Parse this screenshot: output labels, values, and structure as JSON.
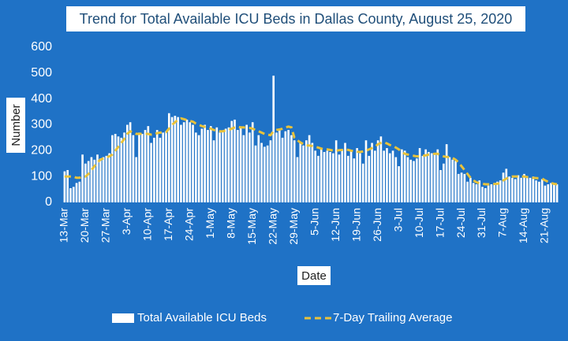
{
  "chart_data": {
    "type": "bar_line",
    "title": "Trend for Total Available ICU Beds in Dallas County, August 25, 2020",
    "x_label": "Date",
    "y_label": "Number",
    "categories": [
      "13-Mar",
      null,
      null,
      null,
      null,
      null,
      null,
      "20-Mar",
      null,
      null,
      null,
      null,
      null,
      null,
      "27-Mar",
      null,
      null,
      null,
      null,
      null,
      null,
      "3-Apr",
      null,
      null,
      null,
      null,
      null,
      null,
      "10-Apr",
      null,
      null,
      null,
      null,
      null,
      null,
      "17-Apr",
      null,
      null,
      null,
      null,
      null,
      null,
      "24-Apr",
      null,
      null,
      null,
      null,
      null,
      null,
      "1-May",
      null,
      null,
      null,
      null,
      null,
      null,
      "8-May",
      null,
      null,
      null,
      null,
      null,
      null,
      "15-May",
      null,
      null,
      null,
      null,
      null,
      null,
      "22-May",
      null,
      null,
      null,
      null,
      null,
      null,
      "29-May",
      null,
      null,
      null,
      null,
      null,
      null,
      "5-Jun",
      null,
      null,
      null,
      null,
      null,
      null,
      "12-Jun",
      null,
      null,
      null,
      null,
      null,
      null,
      "19-Jun",
      null,
      null,
      null,
      null,
      null,
      null,
      "26-Jun",
      null,
      null,
      null,
      null,
      null,
      null,
      "3-Jul",
      null,
      null,
      null,
      null,
      null,
      null,
      "10-Jul",
      null,
      null,
      null,
      null,
      null,
      null,
      "17-Jul",
      null,
      null,
      null,
      null,
      null,
      null,
      "24-Jul",
      null,
      null,
      null,
      null,
      null,
      null,
      "31-Jul",
      null,
      null,
      null,
      null,
      null,
      null,
      "7-Aug",
      null,
      null,
      null,
      null,
      null,
      null,
      "14-Aug",
      null,
      null,
      null,
      null,
      null,
      null,
      "21-Aug",
      null,
      null,
      null,
      null
    ],
    "series": [
      {
        "name": "Total Available ICU Beds",
        "kind": "bar",
        "color": "#ffffff",
        "values": [
          120,
          125,
          55,
          60,
          75,
          80,
          185,
          150,
          160,
          175,
          165,
          185,
          170,
          175,
          180,
          190,
          260,
          265,
          255,
          250,
          270,
          300,
          310,
          260,
          175,
          270,
          265,
          280,
          295,
          230,
          250,
          280,
          250,
          270,
          275,
          345,
          330,
          335,
          330,
          300,
          310,
          320,
          310,
          300,
          270,
          260,
          285,
          300,
          280,
          295,
          240,
          290,
          270,
          275,
          285,
          290,
          315,
          320,
          280,
          290,
          260,
          300,
          270,
          310,
          220,
          260,
          230,
          215,
          220,
          240,
          490,
          270,
          285,
          250,
          275,
          280,
          260,
          240,
          175,
          230,
          220,
          240,
          260,
          230,
          200,
          180,
          210,
          195,
          200,
          195,
          190,
          240,
          185,
          205,
          230,
          180,
          200,
          170,
          210,
          190,
          150,
          240,
          180,
          230,
          200,
          240,
          255,
          200,
          210,
          190,
          200,
          175,
          140,
          205,
          200,
          175,
          165,
          160,
          170,
          210,
          180,
          205,
          195,
          190,
          185,
          205,
          125,
          150,
          225,
          175,
          165,
          160,
          110,
          115,
          110,
          80,
          95,
          75,
          70,
          85,
          60,
          55,
          65,
          70,
          75,
          80,
          85,
          115,
          130,
          100,
          95,
          90,
          105,
          95,
          110,
          100,
          95,
          100,
          85,
          80,
          90,
          65,
          70,
          75,
          75,
          70
        ]
      },
      {
        "name": "7-Day Trailing Average",
        "kind": "line",
        "color": "#e8c23a",
        "values": [
          100,
          100,
          100,
          100,
          95,
          95,
          100,
          100,
          110,
          125,
          140,
          155,
          165,
          170,
          175,
          178,
          185,
          200,
          215,
          230,
          245,
          265,
          275,
          270,
          265,
          265,
          265,
          265,
          265,
          262,
          262,
          268,
          270,
          270,
          272,
          285,
          300,
          310,
          320,
          325,
          322,
          318,
          315,
          312,
          305,
          300,
          295,
          292,
          290,
          285,
          280,
          278,
          275,
          275,
          278,
          280,
          285,
          290,
          292,
          290,
          290,
          288,
          288,
          285,
          280,
          275,
          270,
          265,
          262,
          260,
          275,
          280,
          282,
          285,
          290,
          293,
          290,
          250,
          240,
          232,
          225,
          220,
          220,
          218,
          215,
          212,
          208,
          205,
          205,
          203,
          200,
          200,
          202,
          203,
          205,
          203,
          200,
          198,
          196,
          195,
          197,
          200,
          205,
          210,
          215,
          225,
          230,
          232,
          228,
          222,
          218,
          212,
          205,
          195,
          188,
          185,
          182,
          180,
          178,
          178,
          180,
          182,
          185,
          186,
          188,
          188,
          182,
          178,
          176,
          175,
          172,
          165,
          155,
          140,
          125,
          110,
          95,
          85,
          78,
          74,
          72,
          70,
          70,
          70,
          71,
          72,
          75,
          85,
          92,
          98,
          100,
          100,
          100,
          100,
          100,
          98,
          96,
          95,
          94,
          93,
          92,
          85,
          80,
          75,
          72,
          70
        ]
      }
    ],
    "ylim": [
      0,
      600
    ],
    "yticks": [
      0,
      100,
      200,
      300,
      400,
      500,
      600
    ],
    "grid": false
  }
}
